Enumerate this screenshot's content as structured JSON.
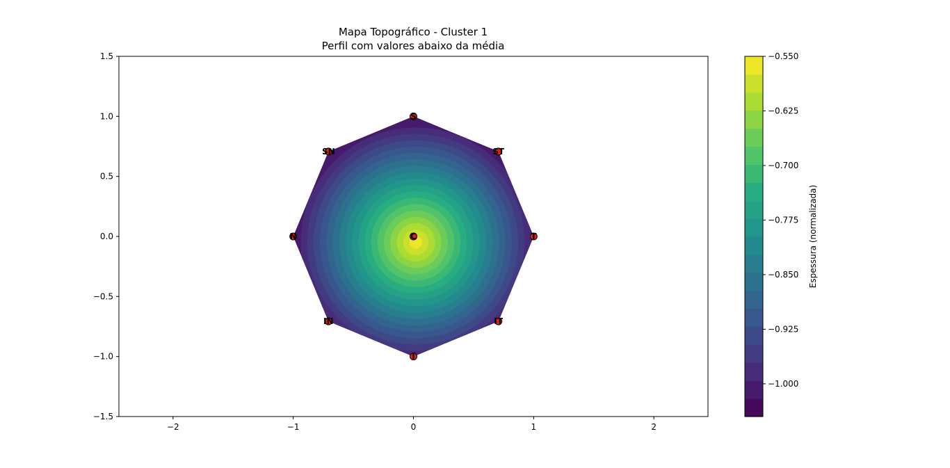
{
  "chart_data": {
    "type": "heatmap",
    "title": "Mapa Topográfico - Cluster 1",
    "subtitle": "Perfil com valores abaixo da média",
    "xlim": [
      -2.45,
      2.45
    ],
    "ylim": [
      -1.5,
      1.5
    ],
    "x_ticks": [
      {
        "value": -2,
        "label": "−2"
      },
      {
        "value": -1,
        "label": "−1"
      },
      {
        "value": 0,
        "label": "0"
      },
      {
        "value": 1,
        "label": "1"
      },
      {
        "value": 2,
        "label": "2"
      }
    ],
    "y_ticks": [
      {
        "value": 1.5,
        "label": "1.5"
      },
      {
        "value": 1.0,
        "label": "1.0"
      },
      {
        "value": 0.5,
        "label": "0.5"
      },
      {
        "value": 0.0,
        "label": "0.0"
      },
      {
        "value": -0.5,
        "label": "−0.5"
      },
      {
        "value": -1.0,
        "label": "−1.0"
      },
      {
        "value": -1.5,
        "label": "−1.5"
      }
    ],
    "grid": false,
    "colormap": "viridis",
    "surface": {
      "shape": "octagon",
      "radius": 1.0,
      "max_value": -0.55,
      "max_location": [
        0.02,
        -0.05
      ],
      "edge_value": -1.02
    },
    "points": [
      {
        "label": "C",
        "x": 0.0,
        "y": 0.0
      },
      {
        "label": "S",
        "x": 0.0,
        "y": 1.0
      },
      {
        "label": "ST",
        "x": 0.707,
        "y": 0.707
      },
      {
        "label": "T",
        "x": 1.0,
        "y": 0.0
      },
      {
        "label": "IT",
        "x": 0.707,
        "y": -0.707
      },
      {
        "label": "I",
        "x": 0.0,
        "y": -1.0
      },
      {
        "label": "IN",
        "x": -0.707,
        "y": -0.707
      },
      {
        "label": "N",
        "x": -1.0,
        "y": 0.0
      },
      {
        "label": "SN",
        "x": -0.707,
        "y": 0.707
      }
    ],
    "point_color": "#e0201c",
    "colorbar": {
      "label": "Espessura (normalizada)",
      "range": [
        -1.045,
        -0.55
      ],
      "levels": 20,
      "ticks": [
        {
          "value": -0.55,
          "label": "−0.550"
        },
        {
          "value": -0.625,
          "label": "−0.625"
        },
        {
          "value": -0.7,
          "label": "−0.700"
        },
        {
          "value": -0.775,
          "label": "−0.775"
        },
        {
          "value": -0.85,
          "label": "−0.850"
        },
        {
          "value": -0.925,
          "label": "−0.925"
        },
        {
          "value": -1.0,
          "label": "−1.000"
        }
      ]
    }
  }
}
